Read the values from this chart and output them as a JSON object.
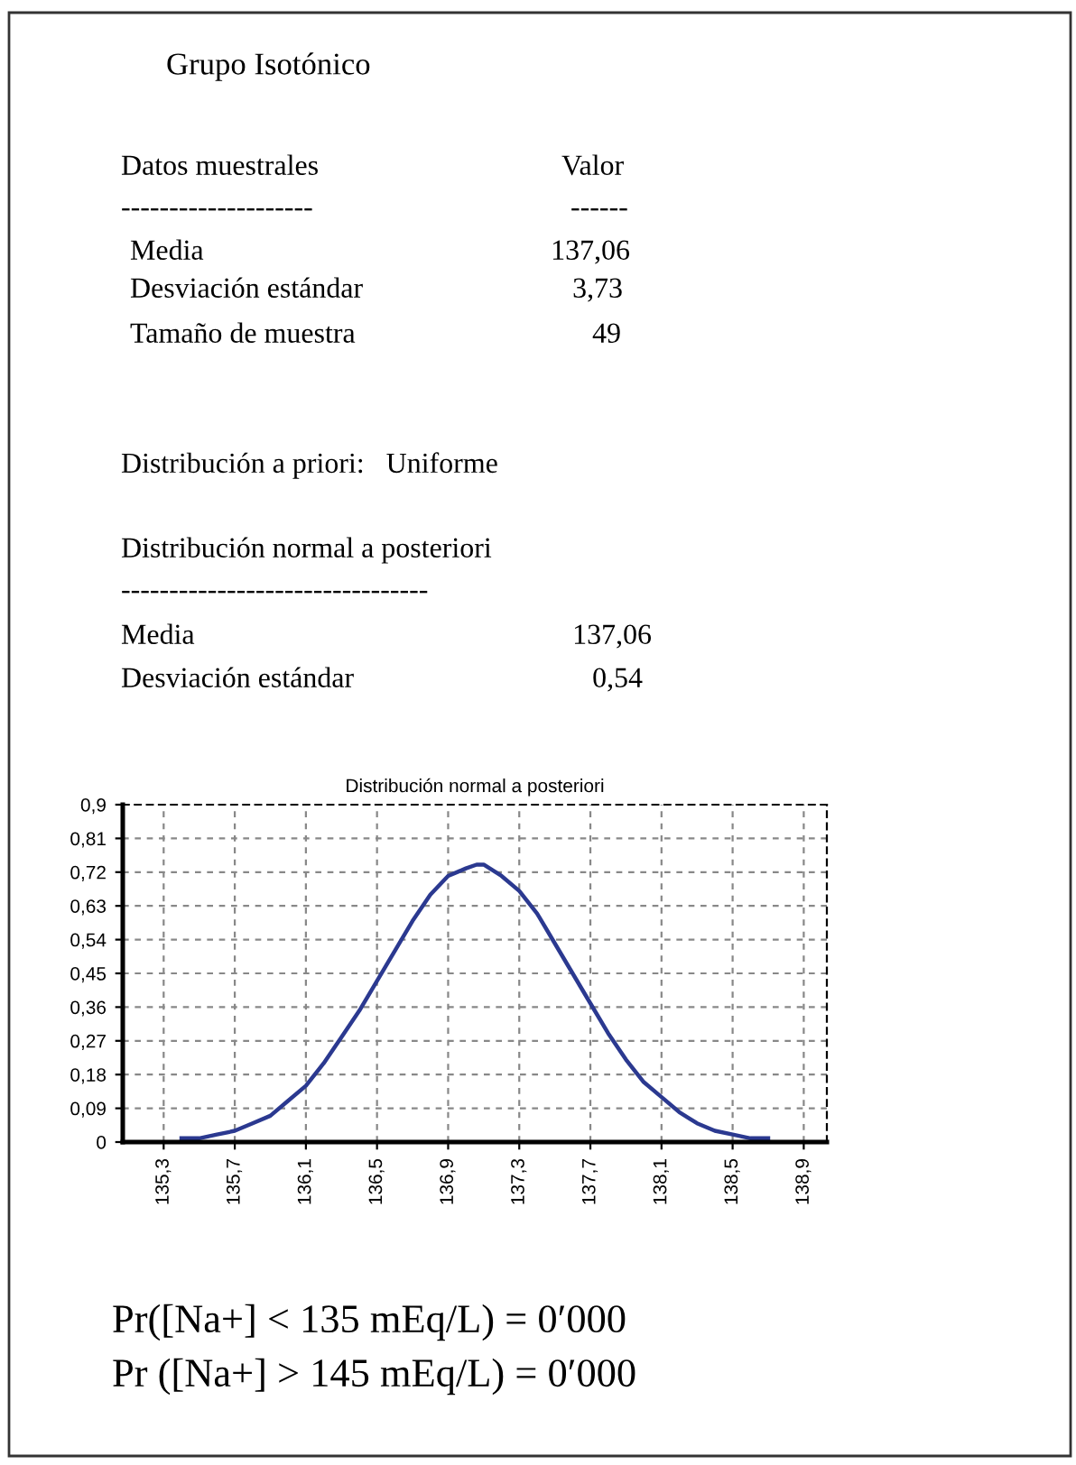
{
  "chart_data": {
    "type": "line",
    "title": "Distribución normal a posteriori",
    "x": [
      135.4,
      135.5,
      135.6,
      135.7,
      135.8,
      135.9,
      136.0,
      136.1,
      136.2,
      136.3,
      136.4,
      136.5,
      136.6,
      136.7,
      136.8,
      136.9,
      137.0,
      137.06,
      137.1,
      137.2,
      137.3,
      137.4,
      137.5,
      137.6,
      137.7,
      137.8,
      137.9,
      138.0,
      138.1,
      138.2,
      138.3,
      138.4,
      138.5,
      138.6,
      138.7
    ],
    "series": [
      {
        "color": "#2b3990",
        "values": [
          0.01,
          0.01,
          0.02,
          0.03,
          0.05,
          0.07,
          0.11,
          0.15,
          0.21,
          0.28,
          0.35,
          0.43,
          0.51,
          0.59,
          0.66,
          0.71,
          0.73,
          0.74,
          0.74,
          0.71,
          0.67,
          0.61,
          0.53,
          0.45,
          0.37,
          0.29,
          0.22,
          0.16,
          0.12,
          0.08,
          0.05,
          0.03,
          0.02,
          0.01,
          0.01
        ]
      }
    ],
    "xlim": [
      135.07,
      139.03
    ],
    "ylim": [
      0,
      0.9
    ],
    "xticks": [
      {
        "value": 135.3,
        "label": "135,3"
      },
      {
        "value": 135.7,
        "label": "135,7"
      },
      {
        "value": 136.1,
        "label": "136,1"
      },
      {
        "value": 136.5,
        "label": "136,5"
      },
      {
        "value": 136.9,
        "label": "136,9"
      },
      {
        "value": 137.3,
        "label": "137,3"
      },
      {
        "value": 137.7,
        "label": "137,7"
      },
      {
        "value": 138.1,
        "label": "138,1"
      },
      {
        "value": 138.5,
        "label": "138,5"
      },
      {
        "value": 138.9,
        "label": "138,9"
      }
    ],
    "yticks": [
      0,
      {
        "value": 0.09,
        "label": "0,09"
      },
      {
        "value": 0.18,
        "label": "0,18"
      },
      {
        "value": 0.27,
        "label": "0,27"
      },
      {
        "value": 0.36,
        "label": "0,36"
      },
      {
        "value": 0.45,
        "label": "0,45"
      },
      {
        "value": 0.54,
        "label": "0,54"
      },
      {
        "value": 0.63,
        "label": "0,63"
      },
      {
        "value": 0.72,
        "label": "0,72"
      },
      {
        "value": 0.81,
        "label": "0,81"
      },
      {
        "value": 0.9,
        "label": "0,9"
      }
    ],
    "grid": true,
    "line_style": "solid",
    "annotations": [
      "Grupo Isotónico",
      "Datos muestrales",
      "Valor",
      "--------------------",
      "------",
      "Media",
      "137,06",
      "Desviación estándar",
      "3,73",
      "Tamaño de muestra",
      "49",
      "Distribución a priori:   Uniforme",
      "Distribución normal a posteriori",
      "--------------------------------",
      "Media",
      "137,06",
      "Desviación estándar",
      "0,54",
      "Pr([Na+] < 135 mEq/L) = 0′000",
      "Pr ([Na+] > 145 mEq/L) = 0′000"
    ]
  }
}
